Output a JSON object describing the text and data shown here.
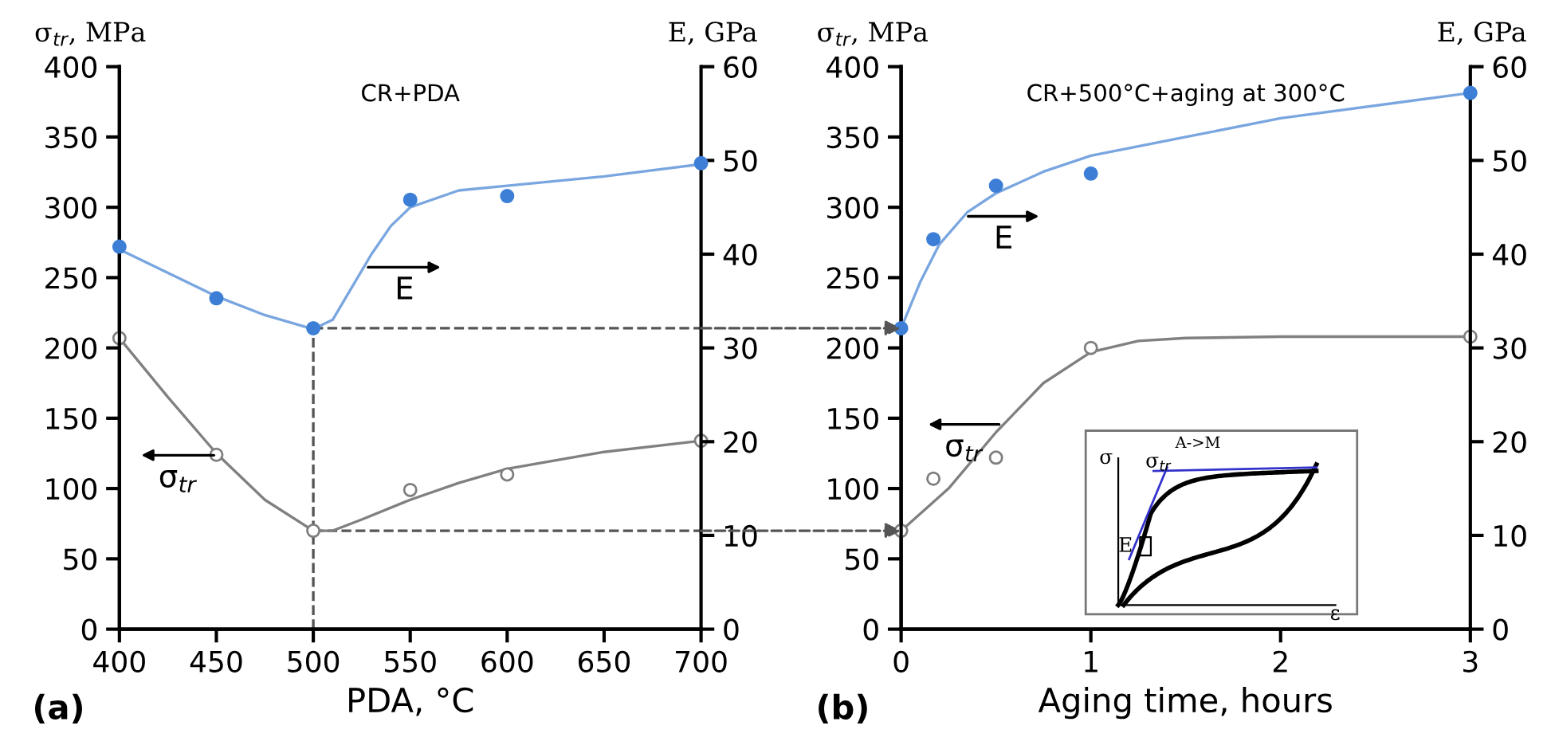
{
  "chart_data": [
    {
      "type": "scatter",
      "title": "CR+PDA",
      "xlabel": "PDA, °C",
      "ylabel": "σ$_{tr}$, MPa",
      "y2label": "E, GPa",
      "xlim": [
        400,
        700
      ],
      "xticks": [
        400,
        450,
        500,
        550,
        600,
        650,
        700
      ],
      "ylim": [
        0,
        400
      ],
      "yticks": [
        0,
        50,
        100,
        150,
        200,
        250,
        300,
        350,
        400
      ],
      "y2lim": [
        0,
        60
      ],
      "y2ticks": [
        0,
        10,
        20,
        30,
        40,
        50,
        60
      ],
      "grid": false,
      "legend": false,
      "series": [
        {
          "marker": "circle",
          "color": "#7f7f7f",
          "x": [
            400,
            450,
            500,
            550,
            600,
            700
          ],
          "values": [
            207,
            124,
            70,
            99,
            110,
            134
          ]
        },
        {
          "marker": "circle",
          "color": "#3d7fd6",
          "axis": "y2",
          "x": [
            400,
            450,
            500,
            550,
            600,
            700
          ],
          "values": [
            40.8,
            35.3,
            32.1,
            45.8,
            46.2,
            49.7
          ]
        },
        {
          "type": "line",
          "marker": "none",
          "name": "σ$_{tr}$",
          "color": "#808080",
          "x": [
            400,
            425,
            450,
            475,
            500,
            510,
            525,
            550,
            575,
            600,
            650,
            700
          ],
          "values": [
            207,
            165,
            125,
            92,
            70,
            70,
            78,
            92,
            104,
            114,
            126,
            134
          ]
        },
        {
          "type": "line",
          "marker": "none",
          "name": "E",
          "color": "#7aa6e0",
          "axis": "y2",
          "x": [
            400,
            450,
            475,
            500,
            510,
            520,
            530,
            540,
            550,
            575,
            600,
            650,
            700
          ],
          "values": [
            40.5,
            35.5,
            33.5,
            32.0,
            33.0,
            36.5,
            40.0,
            43.0,
            45.0,
            46.8,
            47.3,
            48.3,
            49.6
          ]
        }
      ],
      "ref_lines": [
        {
          "axis": "x",
          "value": 500,
          "color": "#555555",
          "line_style": "dashed"
        },
        {
          "axis": "y",
          "value": 214,
          "color": "#555555",
          "line_style": "dashed"
        },
        {
          "axis": "y",
          "value": 70,
          "color": "#555555",
          "line_style": "dashed"
        }
      ],
      "annotations": [
        "(a)"
      ]
    },
    {
      "type": "scatter",
      "title": "CR+500°C+aging at 300°C",
      "xlabel": "Aging time, hours",
      "ylabel": "σ$_{tr}$, MPa",
      "y2label": "E, GPa",
      "xlim": [
        0,
        3
      ],
      "xticks": [
        0,
        1,
        2,
        3
      ],
      "ylim": [
        0,
        400
      ],
      "yticks": [
        0,
        50,
        100,
        150,
        200,
        250,
        300,
        350,
        400
      ],
      "y2lim": [
        0,
        60
      ],
      "y2ticks": [
        0,
        10,
        20,
        30,
        40,
        50,
        60
      ],
      "grid": false,
      "legend": false,
      "series": [
        {
          "marker": "circle",
          "color": "#7f7f7f",
          "x": [
            0,
            0.17,
            0.5,
            1,
            3
          ],
          "values": [
            70,
            107,
            122,
            200,
            208
          ]
        },
        {
          "marker": "circle",
          "color": "#3d7fd6",
          "axis": "y2",
          "x": [
            0,
            0.17,
            0.5,
            1,
            3
          ],
          "values": [
            32.1,
            41.6,
            47.3,
            48.6,
            57.2
          ]
        },
        {
          "type": "line",
          "marker": "none",
          "name": "σ$_{tr}$",
          "color": "#808080",
          "x": [
            0,
            0.25,
            0.5,
            0.75,
            1,
            1.25,
            1.5,
            2,
            3
          ],
          "values": [
            70,
            100,
            140,
            175,
            197,
            205,
            207,
            208,
            208
          ]
        },
        {
          "type": "line",
          "marker": "none",
          "name": "E",
          "color": "#7aa6e0",
          "axis": "y2",
          "x": [
            0,
            0.1,
            0.2,
            0.35,
            0.5,
            0.75,
            1,
            1.5,
            2,
            3
          ],
          "values": [
            32.1,
            37.0,
            41.0,
            44.5,
            46.5,
            48.8,
            50.5,
            52.5,
            54.5,
            57.2
          ]
        }
      ],
      "annotations": [
        "(b)",
        "σ",
        "σ$_{tr}$",
        "A->M",
        "E",
        "ε"
      ]
    }
  ]
}
